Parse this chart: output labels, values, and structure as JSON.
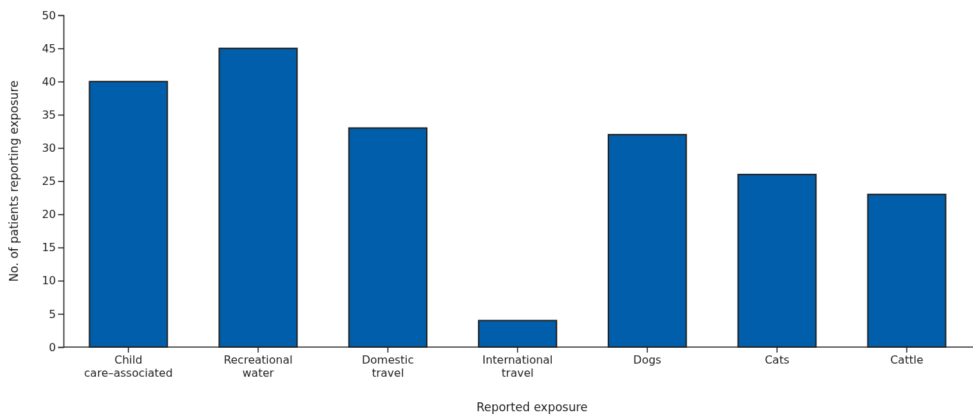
{
  "chart_data": {
    "type": "bar",
    "categories": [
      "Child\ncare–associated",
      "Recreational\nwater",
      "Domestic\ntravel",
      "International\ntravel",
      "Dogs",
      "Cats",
      "Cattle"
    ],
    "values": [
      40,
      45,
      33,
      4,
      32,
      26,
      23
    ],
    "color": "#005eaa",
    "xlabel": "Reported exposure",
    "ylabel": "No. of patients reporting exposure",
    "ylim": [
      0,
      50
    ],
    "yticks": [
      0,
      5,
      10,
      15,
      20,
      25,
      30,
      35,
      40,
      45,
      50
    ],
    "grid": false,
    "legend": false
  }
}
